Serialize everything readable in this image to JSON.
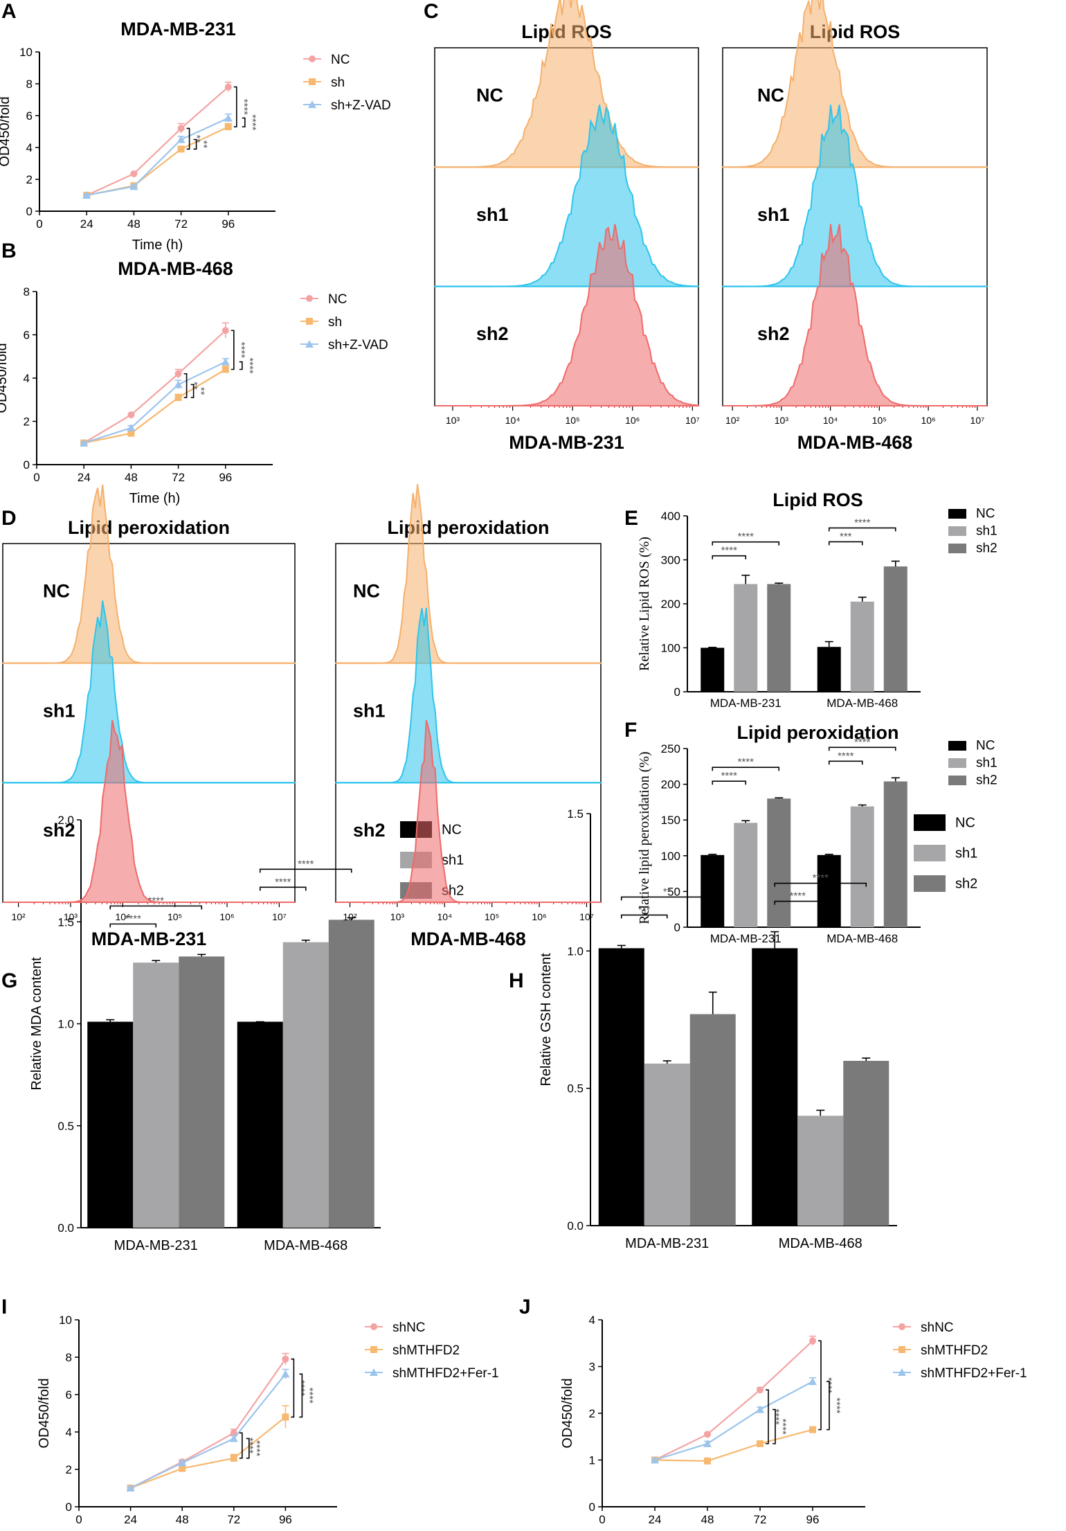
{
  "panel_letters": [
    "A",
    "B",
    "C",
    "D",
    "E",
    "F",
    "G",
    "H",
    "I",
    "J"
  ],
  "chart_data": [
    {
      "id": "A",
      "type": "line",
      "title": "MDA-MB-231",
      "xlabel": "Time (h)",
      "ylabel": "OD450/fold",
      "xlim": [
        0,
        120
      ],
      "ylim": [
        0,
        10
      ],
      "xticks": [
        0,
        24,
        48,
        72,
        96
      ],
      "yticks": [
        0,
        2,
        4,
        6,
        8,
        10
      ],
      "x": [
        24,
        48,
        72,
        96
      ],
      "series": [
        {
          "name": "NC",
          "color": "#f4a3a3",
          "marker": "circle",
          "values": [
            1.0,
            2.35,
            5.2,
            7.8
          ],
          "errors": [
            0.05,
            0.05,
            0.3,
            0.3
          ]
        },
        {
          "name": "sh",
          "color": "#f7b870",
          "marker": "square",
          "values": [
            1.0,
            1.6,
            3.9,
            5.3
          ],
          "errors": [
            0.05,
            0.1,
            0.15,
            0.2
          ]
        },
        {
          "name": "sh+Z-VAD",
          "color": "#9cc4ec",
          "marker": "triangle",
          "values": [
            1.0,
            1.55,
            4.5,
            5.85
          ],
          "errors": [
            0.05,
            0.1,
            0.2,
            0.25
          ]
        }
      ],
      "significance": [
        "****",
        "****",
        "**",
        "**",
        "**"
      ]
    },
    {
      "id": "B",
      "type": "line",
      "title": "MDA-MB-468",
      "xlabel": "Time (h)",
      "ylabel": "OD450/fold",
      "xlim": [
        0,
        120
      ],
      "ylim": [
        0,
        8
      ],
      "xticks": [
        0,
        24,
        48,
        72,
        96
      ],
      "yticks": [
        0,
        2,
        4,
        6,
        8
      ],
      "x": [
        24,
        48,
        72,
        96
      ],
      "series": [
        {
          "name": "NC",
          "color": "#f4a3a3",
          "marker": "circle",
          "values": [
            1.0,
            2.3,
            4.2,
            6.2
          ],
          "errors": [
            0.05,
            0.05,
            0.2,
            0.35
          ]
        },
        {
          "name": "sh",
          "color": "#f7b870",
          "marker": "square",
          "values": [
            1.0,
            1.45,
            3.1,
            4.4
          ],
          "errors": [
            0.05,
            0.1,
            0.15,
            0.15
          ]
        },
        {
          "name": "sh+Z-VAD",
          "color": "#9cc4ec",
          "marker": "triangle",
          "values": [
            1.0,
            1.7,
            3.7,
            4.75
          ],
          "errors": [
            0.05,
            0.1,
            0.2,
            0.15
          ]
        }
      ],
      "significance": [
        "****",
        "****",
        "**",
        "**",
        "**"
      ]
    },
    {
      "id": "E",
      "type": "bar",
      "title": "Lipid ROS",
      "ylabel": "Relative Lipid ROS (%)",
      "ylim": [
        0,
        400
      ],
      "yticks": [
        0,
        100,
        200,
        300,
        400
      ],
      "categories": [
        "MDA-MB-231",
        "MDA-MB-468"
      ],
      "series": [
        {
          "name": "NC",
          "color": "#000000",
          "values": [
            100,
            102
          ],
          "errors": [
            1,
            12
          ]
        },
        {
          "name": "sh1",
          "color": "#a6a6a8",
          "values": [
            245,
            205
          ],
          "errors": [
            20,
            10
          ]
        },
        {
          "name": "sh2",
          "color": "#7a7a7a",
          "values": [
            245,
            285
          ],
          "errors": [
            2,
            12
          ]
        }
      ],
      "brackets": [
        {
          "group": 0,
          "to": 1,
          "label": "****"
        },
        {
          "group": 0,
          "to": 2,
          "label": "****"
        },
        {
          "group": 1,
          "to": 1,
          "label": "***"
        },
        {
          "group": 1,
          "to": 2,
          "label": "****"
        }
      ]
    },
    {
      "id": "F",
      "type": "bar",
      "title": "Lipid peroxidation",
      "ylabel": "Relative lipid peroxidation (%)",
      "ylim": [
        0,
        250
      ],
      "yticks": [
        0,
        50,
        100,
        150,
        200,
        250
      ],
      "categories": [
        "MDA-MB-231",
        "MDA-MB-468"
      ],
      "series": [
        {
          "name": "NC",
          "color": "#000000",
          "values": [
            101,
            101
          ],
          "errors": [
            1,
            1
          ]
        },
        {
          "name": "sh1",
          "color": "#a6a6a8",
          "values": [
            146,
            169
          ],
          "errors": [
            3,
            2
          ]
        },
        {
          "name": "sh2",
          "color": "#7a7a7a",
          "values": [
            180,
            204
          ],
          "errors": [
            1,
            5
          ]
        }
      ],
      "brackets": [
        {
          "group": 0,
          "to": 1,
          "label": "****"
        },
        {
          "group": 0,
          "to": 2,
          "label": "****"
        },
        {
          "group": 1,
          "to": 1,
          "label": "****"
        },
        {
          "group": 1,
          "to": 2,
          "label": "****"
        }
      ]
    },
    {
      "id": "G",
      "type": "bar",
      "title": "",
      "ylabel": "Relative MDA content",
      "ylim": [
        0,
        2.0
      ],
      "yticks": [
        "0.0",
        "0.5",
        "1.0",
        "1.5",
        "2.0"
      ],
      "categories": [
        "MDA-MB-231",
        "MDA-MB-468"
      ],
      "series": [
        {
          "name": "NC",
          "color": "#000000",
          "values": [
            1.01,
            1.01
          ],
          "errors": [
            0.01,
            0.0
          ]
        },
        {
          "name": "sh1",
          "color": "#a6a6a8",
          "values": [
            1.3,
            1.4
          ],
          "errors": [
            0.01,
            0.01
          ]
        },
        {
          "name": "sh2",
          "color": "#7a7a7a",
          "values": [
            1.33,
            1.51
          ],
          "errors": [
            0.01,
            0.01
          ]
        }
      ],
      "brackets": [
        {
          "group": 0,
          "to": 1,
          "label": "****"
        },
        {
          "group": 0,
          "to": 2,
          "label": "****"
        },
        {
          "group": 1,
          "to": 1,
          "label": "****"
        },
        {
          "group": 1,
          "to": 2,
          "label": "****"
        }
      ]
    },
    {
      "id": "H",
      "type": "bar",
      "title": "",
      "ylabel": "Relative GSH content",
      "ylim": [
        0,
        1.5
      ],
      "yticks": [
        "0.0",
        "0.5",
        "1.0",
        "1.5"
      ],
      "categories": [
        "MDA-MB-231",
        "MDA-MB-468"
      ],
      "series": [
        {
          "name": "NC",
          "color": "#000000",
          "values": [
            1.01,
            1.01
          ],
          "errors": [
            0.01,
            0.06
          ]
        },
        {
          "name": "sh1",
          "color": "#a6a6a8",
          "values": [
            0.59,
            0.4
          ],
          "errors": [
            0.01,
            0.02
          ]
        },
        {
          "name": "sh2",
          "color": "#7a7a7a",
          "values": [
            0.77,
            0.6
          ],
          "errors": [
            0.08,
            0.01
          ]
        }
      ],
      "brackets": [
        {
          "group": 0,
          "to": 1,
          "label": "***"
        },
        {
          "group": 0,
          "to": 2,
          "label": "**"
        },
        {
          "group": 1,
          "to": 1,
          "label": "****"
        },
        {
          "group": 1,
          "to": 2,
          "label": "****"
        }
      ]
    },
    {
      "id": "I",
      "type": "line",
      "title": "",
      "xlabel": "Time (h)",
      "ylabel": "OD450/fold",
      "xlim": [
        0,
        120
      ],
      "ylim": [
        0,
        10
      ],
      "xticks": [
        0,
        24,
        48,
        72,
        96
      ],
      "yticks": [
        0,
        2,
        4,
        6,
        8,
        10
      ],
      "x": [
        24,
        48,
        72,
        96
      ],
      "series": [
        {
          "name": "shNC",
          "color": "#f4a3a3",
          "marker": "circle",
          "values": [
            1.0,
            2.4,
            3.95,
            7.9
          ],
          "errors": [
            0.05,
            0.1,
            0.2,
            0.3
          ]
        },
        {
          "name": "shMTHFD2",
          "color": "#f7b870",
          "marker": "square",
          "values": [
            1.0,
            2.05,
            2.6,
            4.8
          ],
          "errors": [
            0.05,
            0.1,
            0.2,
            0.6
          ]
        },
        {
          "name": "shMTHFD2+Fer-1",
          "color": "#9cc4ec",
          "marker": "triangle",
          "values": [
            1.0,
            2.35,
            3.65,
            7.1
          ],
          "errors": [
            0.05,
            0.1,
            0.15,
            0.25
          ]
        }
      ],
      "significance": [
        "****",
        "****",
        "****",
        "****"
      ]
    },
    {
      "id": "J",
      "type": "line",
      "title": "",
      "xlabel": "Time (h)",
      "ylabel": "OD450/fold",
      "xlim": [
        0,
        120
      ],
      "ylim": [
        0,
        4
      ],
      "xticks": [
        0,
        24,
        48,
        72,
        96
      ],
      "yticks": [
        0,
        1,
        2,
        3,
        4
      ],
      "x": [
        24,
        48,
        72,
        96
      ],
      "series": [
        {
          "name": "shNC",
          "color": "#f4a3a3",
          "marker": "circle",
          "values": [
            1.0,
            1.55,
            2.5,
            3.55
          ],
          "errors": [
            0.03,
            0.03,
            0.05,
            0.1
          ]
        },
        {
          "name": "shMTHFD2",
          "color": "#f7b870",
          "marker": "square",
          "values": [
            1.0,
            0.98,
            1.35,
            1.65
          ],
          "errors": [
            0.03,
            0.03,
            0.04,
            0.05
          ]
        },
        {
          "name": "shMTHFD2+Fer-1",
          "color": "#9cc4ec",
          "marker": "triangle",
          "values": [
            1.0,
            1.35,
            2.08,
            2.68
          ],
          "errors": [
            0.03,
            0.05,
            0.05,
            0.08
          ]
        }
      ],
      "significance": [
        "****",
        "****",
        "****",
        "****"
      ]
    }
  ],
  "flow_panels": [
    {
      "id": "C-left",
      "title": "Lipid ROS",
      "cell_line": "MDA-MB-231",
      "axis_ticks": [
        "10³",
        "10⁴",
        "10⁵",
        "10⁶",
        "10⁷"
      ],
      "tracks": [
        {
          "label": "NC",
          "color": "#f5b06c",
          "peak_log": 4.95
        },
        {
          "label": "sh1",
          "color": "#2ec4ec",
          "peak_log": 5.5
        },
        {
          "label": "sh2",
          "color": "#ef6a6a",
          "peak_log": 5.65
        }
      ]
    },
    {
      "id": "C-right",
      "title": "Lipid ROS",
      "cell_line": "MDA-MB-468",
      "axis_ticks": [
        "10²",
        "10³",
        "10⁴",
        "10⁵",
        "10⁶",
        "10⁷"
      ],
      "tracks": [
        {
          "label": "NC",
          "color": "#f5b06c",
          "peak_log": 3.7
        },
        {
          "label": "sh1",
          "color": "#2ec4ec",
          "peak_log": 4.1
        },
        {
          "label": "sh2",
          "color": "#ef6a6a",
          "peak_log": 4.1
        }
      ]
    },
    {
      "id": "D-left",
      "title": "Lipid peroxidation",
      "cell_line": "MDA-MB-231",
      "axis_ticks": [
        "10²",
        "10³",
        "10⁴",
        "10⁵",
        "10⁶",
        "10⁷"
      ],
      "tracks": [
        {
          "label": "NC",
          "color": "#f5b06c",
          "peak_log": 3.55
        },
        {
          "label": "sh1",
          "color": "#2ec4ec",
          "peak_log": 3.6
        },
        {
          "label": "sh2",
          "color": "#ef6a6a",
          "peak_log": 3.85
        }
      ]
    },
    {
      "id": "D-right",
      "title": "Lipid peroxidation",
      "cell_line": "MDA-MB-468",
      "axis_ticks": [
        "10²",
        "10³",
        "10⁴",
        "10⁵",
        "10⁶",
        "10⁷"
      ],
      "tracks": [
        {
          "label": "NC",
          "color": "#f5b06c",
          "peak_log": 3.4
        },
        {
          "label": "sh1",
          "color": "#2ec4ec",
          "peak_log": 3.55
        },
        {
          "label": "sh2",
          "color": "#ef6a6a",
          "peak_log": 3.65
        }
      ]
    }
  ]
}
